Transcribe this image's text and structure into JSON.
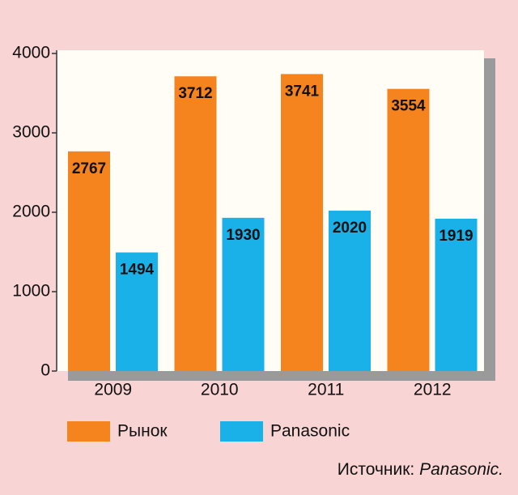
{
  "chart_data": {
    "type": "bar",
    "categories": [
      "2009",
      "2010",
      "2011",
      "2012"
    ],
    "series": [
      {
        "name": "Рынок",
        "color": "#f5841f",
        "values": [
          2767,
          3712,
          3741,
          3554
        ]
      },
      {
        "name": "Panasonic",
        "color": "#1ab0e8",
        "values": [
          1494,
          1930,
          2020,
          1919
        ]
      }
    ],
    "ylim": [
      0,
      4000
    ],
    "yticks": [
      0,
      1000,
      2000,
      3000,
      4000
    ],
    "source_label": "Источник:",
    "source_name": "Panasonic."
  }
}
